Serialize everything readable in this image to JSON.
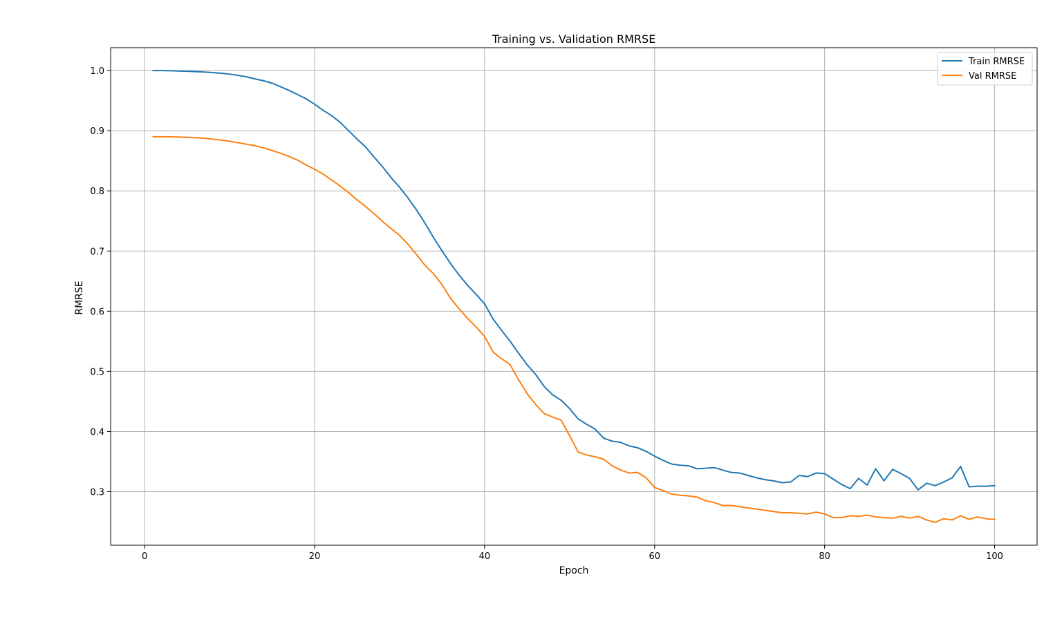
{
  "chart_data": {
    "type": "line",
    "title": "Training vs. Validation RMRSE",
    "xlabel": "Epoch",
    "ylabel": "RMRSE",
    "xlim": [
      -4,
      105
    ],
    "ylim": [
      0.211,
      1.038
    ],
    "xticks": [
      0,
      20,
      40,
      60,
      80,
      100
    ],
    "yticks": [
      0.3,
      0.4,
      0.5,
      0.6,
      0.7,
      0.8,
      0.9,
      1.0
    ],
    "xtick_labels": [
      "0",
      "20",
      "40",
      "60",
      "80",
      "100"
    ],
    "ytick_labels": [
      "0.3",
      "0.4",
      "0.5",
      "0.6",
      "0.7",
      "0.8",
      "0.9",
      "1.0"
    ],
    "grid": true,
    "legend_position": "top-right",
    "x_start": 1,
    "x_step": 1,
    "series": [
      {
        "name": "Train RMRSE",
        "color": "#1f77b4",
        "values": [
          1.0,
          1.0,
          0.9996,
          0.9992,
          0.9988,
          0.9982,
          0.9975,
          0.9966,
          0.9955,
          0.994,
          0.992,
          0.9895,
          0.986,
          0.983,
          0.979,
          0.973,
          0.967,
          0.96,
          0.953,
          0.944,
          0.934,
          0.925,
          0.914,
          0.9,
          0.886,
          0.873,
          0.856,
          0.84,
          0.822,
          0.806,
          0.788,
          0.768,
          0.746,
          0.722,
          0.7,
          0.679,
          0.66,
          0.643,
          0.628,
          0.612,
          0.587,
          0.568,
          0.55,
          0.53,
          0.511,
          0.495,
          0.475,
          0.461,
          0.452,
          0.438,
          0.421,
          0.412,
          0.404,
          0.389,
          0.384,
          0.382,
          0.376,
          0.373,
          0.367,
          0.359,
          0.352,
          0.346,
          0.344,
          0.343,
          0.338,
          0.339,
          0.34,
          0.336,
          0.332,
          0.331,
          0.327,
          0.323,
          0.32,
          0.318,
          0.315,
          0.316,
          0.327,
          0.325,
          0.331,
          0.33,
          0.321,
          0.312,
          0.305,
          0.322,
          0.311,
          0.338,
          0.318,
          0.337,
          0.33,
          0.322,
          0.303,
          0.314,
          0.31,
          0.316,
          0.323,
          0.342,
          0.308,
          0.309,
          0.309,
          0.31
        ]
      },
      {
        "name": "Val RMRSE",
        "color": "#ff7f0e",
        "values": [
          0.89,
          0.89,
          0.8898,
          0.8895,
          0.889,
          0.8885,
          0.8875,
          0.886,
          0.8845,
          0.8825,
          0.88,
          0.8775,
          0.875,
          0.8715,
          0.867,
          0.8625,
          0.857,
          0.851,
          0.843,
          0.836,
          0.828,
          0.818,
          0.808,
          0.797,
          0.785,
          0.774,
          0.762,
          0.749,
          0.737,
          0.726,
          0.711,
          0.694,
          0.676,
          0.662,
          0.644,
          0.621,
          0.604,
          0.588,
          0.574,
          0.558,
          0.532,
          0.521,
          0.511,
          0.486,
          0.463,
          0.445,
          0.43,
          0.424,
          0.419,
          0.393,
          0.366,
          0.361,
          0.358,
          0.354,
          0.343,
          0.336,
          0.331,
          0.332,
          0.323,
          0.307,
          0.302,
          0.296,
          0.294,
          0.293,
          0.291,
          0.285,
          0.282,
          0.277,
          0.277,
          0.275,
          0.273,
          0.271,
          0.269,
          0.267,
          0.265,
          0.265,
          0.264,
          0.263,
          0.266,
          0.263,
          0.257,
          0.257,
          0.26,
          0.259,
          0.261,
          0.258,
          0.257,
          0.256,
          0.259,
          0.256,
          0.259,
          0.253,
          0.249,
          0.255,
          0.253,
          0.26,
          0.254,
          0.258,
          0.255,
          0.254
        ]
      }
    ]
  }
}
